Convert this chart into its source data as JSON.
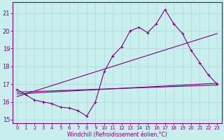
{
  "xlabel": "Windchill (Refroidissement éolien,°C)",
  "bg_color": "#c8eeed",
  "line_color": "#800080",
  "grid_color": "#b0dcd8",
  "xlim": [
    -0.5,
    23.5
  ],
  "ylim": [
    14.8,
    21.6
  ],
  "yticks": [
    15,
    16,
    17,
    18,
    19,
    20,
    21
  ],
  "xticks": [
    0,
    1,
    2,
    3,
    4,
    5,
    6,
    7,
    8,
    9,
    10,
    11,
    12,
    13,
    14,
    15,
    16,
    17,
    18,
    19,
    20,
    21,
    22,
    23
  ],
  "line1_x": [
    0,
    1,
    2,
    3,
    4,
    5,
    6,
    7,
    8,
    9,
    10,
    11,
    12,
    13,
    14,
    15,
    16,
    17,
    18,
    19,
    20,
    21,
    22,
    23
  ],
  "line1_y": [
    16.7,
    16.4,
    16.1,
    16.0,
    15.9,
    15.7,
    15.65,
    15.5,
    15.2,
    16.0,
    17.7,
    18.6,
    19.1,
    20.0,
    20.2,
    19.9,
    20.4,
    21.2,
    20.4,
    19.85,
    18.9,
    18.2,
    17.5,
    17.0
  ],
  "line2_x": [
    0,
    23
  ],
  "line2_y": [
    16.55,
    16.95
  ],
  "line3_x": [
    0,
    23
  ],
  "line3_y": [
    16.3,
    19.85
  ],
  "line4_x": [
    0,
    23
  ],
  "line4_y": [
    16.45,
    17.05
  ]
}
